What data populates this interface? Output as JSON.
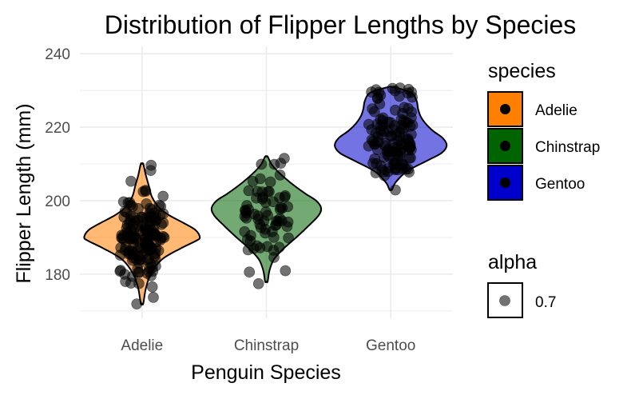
{
  "chart_data": {
    "type": "violin",
    "title": "Distribution of Flipper Lengths by Species",
    "xlabel": "Penguin Species",
    "ylabel": "Flipper Length (mm)",
    "categories": [
      "Adelie",
      "Chinstrap",
      "Gentoo"
    ],
    "y_ticks": [
      "180",
      "200",
      "220",
      "240"
    ],
    "ylim": [
      168,
      242
    ],
    "grid": true,
    "violins": [
      {
        "category": "Adelie",
        "color": "#FF7F00",
        "range": [
          172,
          210
        ],
        "widths": [
          [
            172,
            0.02
          ],
          [
            176,
            0.06
          ],
          [
            180,
            0.14
          ],
          [
            184,
            0.32
          ],
          [
            187,
            0.62
          ],
          [
            189,
            0.86
          ],
          [
            190,
            0.93
          ],
          [
            192,
            0.86
          ],
          [
            194,
            0.66
          ],
          [
            196,
            0.44
          ],
          [
            198,
            0.28
          ],
          [
            201,
            0.16
          ],
          [
            204,
            0.11
          ],
          [
            207,
            0.06
          ],
          [
            210,
            0.02
          ]
        ]
      },
      {
        "category": "Chinstrap",
        "color": "#006400",
        "range": [
          178,
          212
        ],
        "widths": [
          [
            178,
            0.02
          ],
          [
            181,
            0.05
          ],
          [
            184,
            0.12
          ],
          [
            187,
            0.28
          ],
          [
            190,
            0.48
          ],
          [
            193,
            0.67
          ],
          [
            196,
            0.84
          ],
          [
            198,
            0.88
          ],
          [
            200,
            0.8
          ],
          [
            202,
            0.62
          ],
          [
            205,
            0.38
          ],
          [
            208,
            0.18
          ],
          [
            210,
            0.08
          ],
          [
            212,
            0.02
          ]
        ]
      },
      {
        "category": "Gentoo",
        "color": "#0000CD",
        "range": [
          203,
          231
        ],
        "widths": [
          [
            203,
            0.02
          ],
          [
            205,
            0.08
          ],
          [
            208,
            0.26
          ],
          [
            211,
            0.6
          ],
          [
            213,
            0.82
          ],
          [
            215,
            0.9
          ],
          [
            217,
            0.84
          ],
          [
            219,
            0.68
          ],
          [
            221,
            0.56
          ],
          [
            223,
            0.48
          ],
          [
            225,
            0.44
          ],
          [
            227,
            0.42
          ],
          [
            229,
            0.36
          ],
          [
            230,
            0.24
          ],
          [
            231,
            0.02
          ]
        ]
      }
    ],
    "points": [
      {
        "category": "Adelie",
        "values": [
          181,
          186,
          195,
          193,
          190,
          181,
          195,
          193,
          190,
          186,
          180,
          182,
          191,
          198,
          185,
          195,
          197,
          184,
          194,
          174,
          180,
          189,
          185,
          180,
          187,
          183,
          187,
          172,
          180,
          178,
          178,
          188,
          184,
          195,
          196,
          190,
          180,
          181,
          184,
          182,
          195,
          186,
          196,
          185,
          190,
          182,
          179,
          190,
          191,
          186,
          188,
          190,
          200,
          187,
          191,
          186,
          193,
          181,
          194,
          185,
          195,
          185,
          192,
          184,
          192,
          195,
          188,
          190,
          198,
          190,
          190,
          196,
          197,
          190,
          195,
          191,
          184,
          187,
          195,
          189,
          196,
          187,
          193,
          191,
          194,
          190,
          189,
          189,
          190,
          202,
          205,
          185,
          186,
          187,
          208,
          190,
          196,
          178,
          192,
          192,
          203,
          183,
          190,
          193,
          184,
          199,
          190,
          181,
          197,
          198,
          191,
          193,
          197,
          191,
          196,
          188,
          199,
          189,
          189,
          187,
          198,
          176,
          202,
          186,
          199,
          191,
          195,
          191,
          210,
          190,
          197,
          193,
          199,
          187,
          190,
          191,
          200,
          185,
          193,
          193,
          187,
          188,
          190,
          192,
          185,
          190,
          184,
          195,
          193,
          187,
          201
        ]
      },
      {
        "category": "Chinstrap",
        "values": [
          192,
          196,
          193,
          188,
          197,
          198,
          178,
          197,
          195,
          198,
          193,
          194,
          185,
          201,
          190,
          201,
          197,
          181,
          190,
          195,
          181,
          191,
          187,
          193,
          195,
          197,
          200,
          200,
          191,
          205,
          187,
          201,
          187,
          203,
          195,
          199,
          195,
          210,
          192,
          205,
          210,
          187,
          196,
          196,
          196,
          201,
          190,
          212,
          187,
          198,
          199,
          201,
          193,
          203,
          187,
          197,
          191,
          203,
          202,
          194,
          206,
          189,
          195,
          207,
          202,
          193,
          210,
          198
        ]
      },
      {
        "category": "Gentoo",
        "values": [
          211,
          230,
          210,
          218,
          215,
          210,
          211,
          219,
          209,
          215,
          214,
          216,
          214,
          213,
          210,
          217,
          210,
          221,
          209,
          222,
          218,
          215,
          213,
          215,
          215,
          215,
          216,
          215,
          210,
          220,
          222,
          209,
          207,
          230,
          220,
          220,
          213,
          219,
          208,
          208,
          208,
          225,
          210,
          216,
          222,
          217,
          210,
          225,
          213,
          215,
          210,
          220,
          210,
          225,
          217,
          220,
          208,
          220,
          208,
          224,
          208,
          221,
          214,
          231,
          219,
          230,
          214,
          229,
          220,
          223,
          216,
          221,
          221,
          217,
          216,
          230,
          209,
          220,
          215,
          223,
          212,
          221,
          212,
          224,
          212,
          228,
          218,
          218,
          212,
          230,
          218,
          228,
          212,
          224,
          214,
          226,
          216,
          222,
          203,
          225,
          219,
          228,
          215,
          228,
          216,
          215,
          210,
          219,
          208,
          209,
          216,
          229,
          213,
          230,
          217,
          230,
          217,
          222,
          214,
          215,
          222,
          212,
          213
        ]
      }
    ]
  },
  "legend": {
    "species_title": "species",
    "species": [
      {
        "label": "Adelie",
        "color": "#FF7F00"
      },
      {
        "label": "Chinstrap",
        "color": "#006400"
      },
      {
        "label": "Gentoo",
        "color": "#0000CD"
      }
    ],
    "alpha_title": "alpha",
    "alpha_label": "0.7"
  }
}
